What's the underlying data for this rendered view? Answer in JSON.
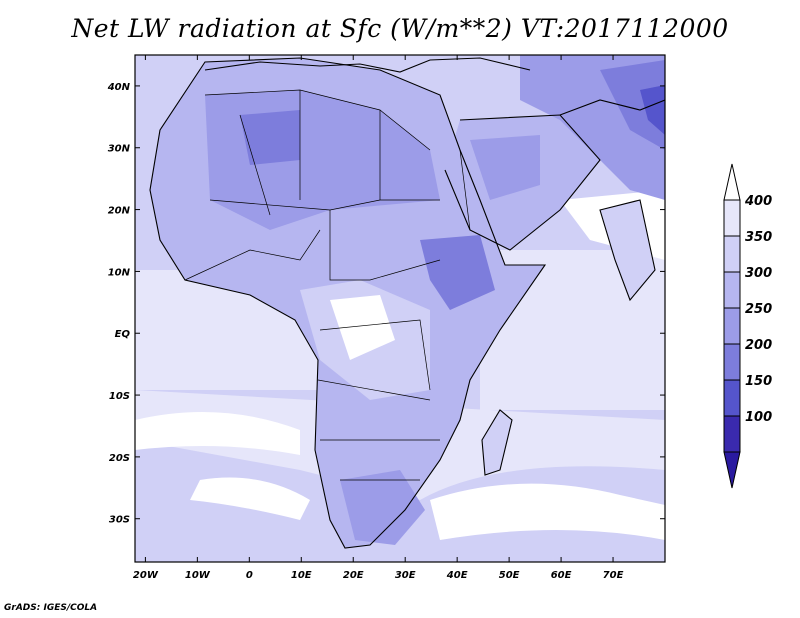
{
  "title": "Net LW radiation at Sfc (W/m**2) VT:2017112000",
  "credit": "GrADS: IGES/COLA",
  "map": {
    "lon_range": [
      -22,
      80
    ],
    "lat_range": [
      -37,
      45
    ],
    "x_ticks": [
      {
        "value": -20,
        "label": "20W"
      },
      {
        "value": -10,
        "label": "10W"
      },
      {
        "value": 0,
        "label": "0"
      },
      {
        "value": 10,
        "label": "10E"
      },
      {
        "value": 20,
        "label": "20E"
      },
      {
        "value": 30,
        "label": "30E"
      },
      {
        "value": 40,
        "label": "40E"
      },
      {
        "value": 50,
        "label": "50E"
      },
      {
        "value": 60,
        "label": "60E"
      },
      {
        "value": 70,
        "label": "70E"
      }
    ],
    "y_ticks": [
      {
        "value": 40,
        "label": "40N"
      },
      {
        "value": 30,
        "label": "30N"
      },
      {
        "value": 20,
        "label": "20N"
      },
      {
        "value": 10,
        "label": "10N"
      },
      {
        "value": 0,
        "label": "EQ"
      },
      {
        "value": -10,
        "label": "10S"
      },
      {
        "value": -20,
        "label": "20S"
      },
      {
        "value": -30,
        "label": "30S"
      }
    ]
  },
  "colorbar": {
    "levels": [
      {
        "label": "400",
        "color": "#e6e6fa"
      },
      {
        "label": "350",
        "color": "#d0d0f6"
      },
      {
        "label": "300",
        "color": "#b6b6f0"
      },
      {
        "label": "250",
        "color": "#9c9ce8"
      },
      {
        "label": "200",
        "color": "#7d7ddc"
      },
      {
        "label": "150",
        "color": "#5555cc"
      },
      {
        "label": "100",
        "color": "#3a2aae"
      }
    ],
    "top_arrow_color": "#ffffff",
    "bottom_arrow_color": "#2a1aa0"
  }
}
